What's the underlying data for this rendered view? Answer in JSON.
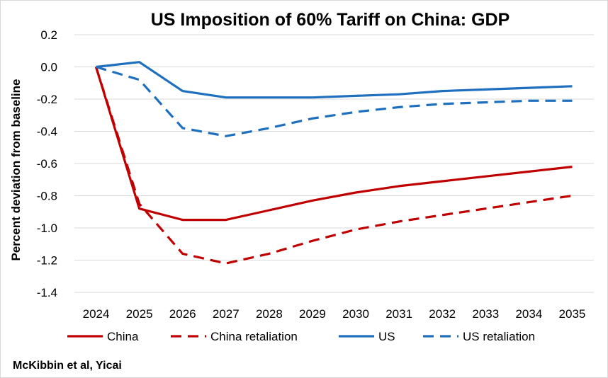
{
  "chart_data": {
    "type": "line",
    "title": "US Imposition of 60% Tariff on China: GDP",
    "xlabel": "",
    "ylabel": "Percent deviation from baseline",
    "x": [
      "2024",
      "2025",
      "2026",
      "2027",
      "2028",
      "2029",
      "2030",
      "2031",
      "2032",
      "2033",
      "2034",
      "2035"
    ],
    "ylim": [
      -1.4,
      0.2
    ],
    "ytick_step": 0.2,
    "grid": true,
    "legend_position": "bottom",
    "series": [
      {
        "name": "China",
        "color": "#c00000",
        "dash": "solid",
        "values": [
          0.0,
          -0.88,
          -0.95,
          -0.95,
          -0.89,
          -0.83,
          -0.78,
          -0.74,
          -0.71,
          -0.68,
          -0.65,
          -0.62
        ]
      },
      {
        "name": "China retaliation",
        "color": "#c00000",
        "dash": "dashed",
        "values": [
          0.0,
          -0.85,
          -1.16,
          -1.22,
          -1.16,
          -1.08,
          -1.01,
          -0.96,
          -0.92,
          -0.88,
          -0.84,
          -0.8
        ]
      },
      {
        "name": "US",
        "color": "#1f6fbf",
        "dash": "solid",
        "values": [
          0.0,
          0.03,
          -0.15,
          -0.19,
          -0.19,
          -0.19,
          -0.18,
          -0.17,
          -0.15,
          -0.14,
          -0.13,
          -0.12
        ]
      },
      {
        "name": "US retaliation",
        "color": "#1f6fbf",
        "dash": "dashed",
        "values": [
          0.0,
          -0.08,
          -0.38,
          -0.43,
          -0.38,
          -0.32,
          -0.28,
          -0.25,
          -0.23,
          -0.22,
          -0.21,
          -0.21
        ]
      }
    ],
    "source": "McKibbin et al, Yicai"
  }
}
